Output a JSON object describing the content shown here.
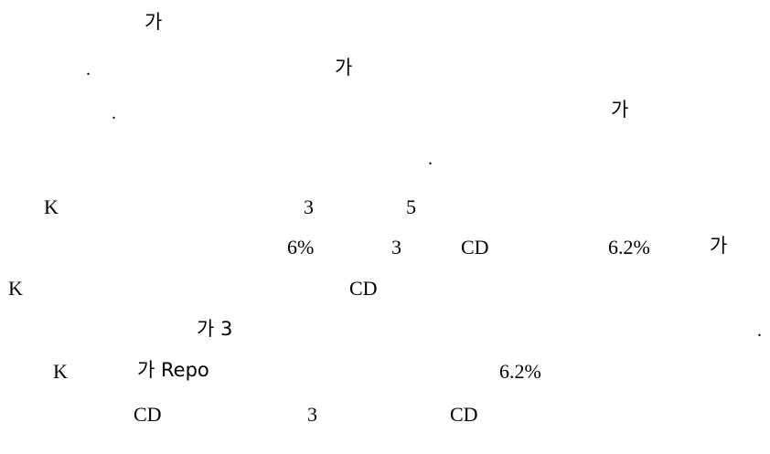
{
  "fragments": {
    "l1_ga": "가",
    "l2_dot": ".",
    "l2_ga": "가",
    "l3_dot": ".",
    "l3_ga": "가",
    "l4_dot": ".",
    "l5_k": "K",
    "l5_3": "3",
    "l5_5": "5",
    "l6_6pct": "6%",
    "l6_3": "3",
    "l6_cd": "CD",
    "l6_62pct": "6.2%",
    "l6_ga": "가",
    "l7_k": "K",
    "l7_cd": "CD",
    "l8_ga3": "가 3",
    "l8_dot": ".",
    "l9_k": "K",
    "l9_garepo": "가 Repo",
    "l9_62pct": "6.2%",
    "l10_cd1": "CD",
    "l10_3": "3",
    "l10_cd2": "CD"
  }
}
